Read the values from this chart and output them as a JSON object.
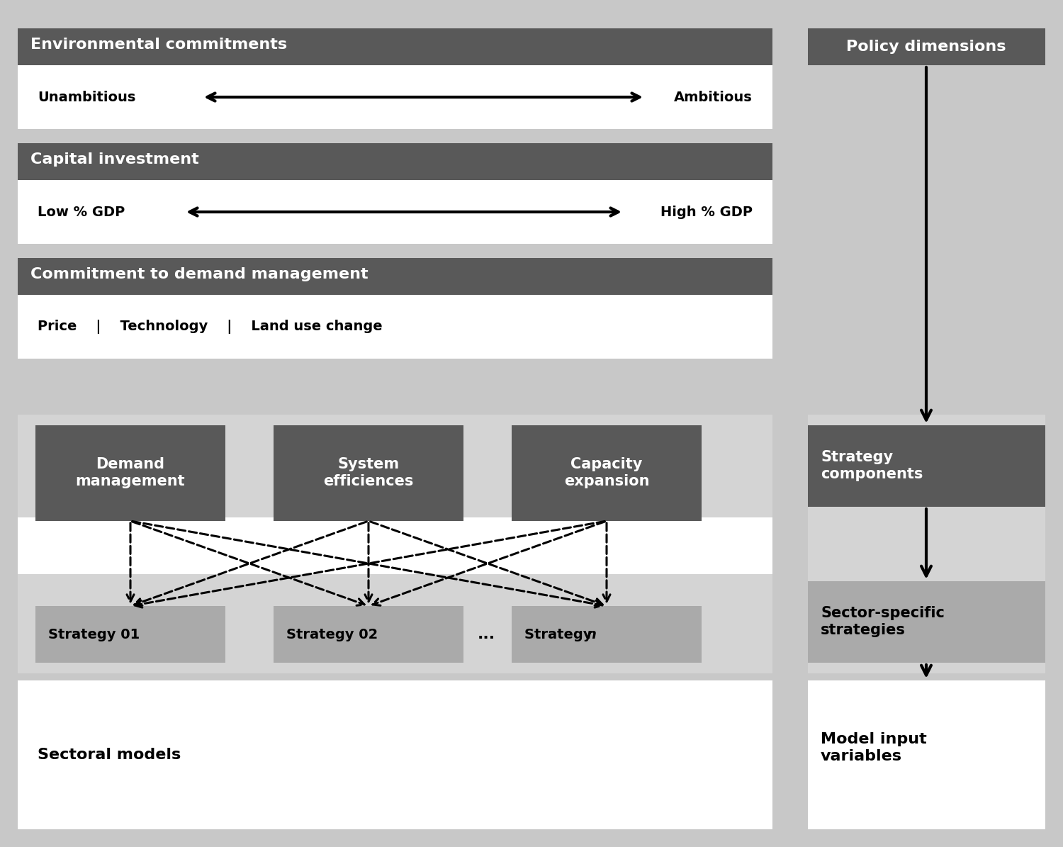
{
  "bg_color": "#c8c8c8",
  "white": "#ffffff",
  "dark_header": "#595959",
  "medium_gray": "#aaaaaa",
  "light_gray": "#d4d4d4",
  "section_bg": "#e0e0e0",
  "black": "#000000",
  "env_header": "Environmental commitments",
  "env_left": "Unambitious",
  "env_right": "Ambitious",
  "cap_header": "Capital investment",
  "cap_left": "Low % GDP",
  "cap_right": "High % GDP",
  "demand_header": "Commitment to demand management",
  "demand_items": "Price    |    Technology    |    Land use change",
  "policy_dim": "Policy dimensions",
  "sc1": "Demand\nmanagement",
  "sc2": "System\nefficiences",
  "sc3": "Capacity\nexpansion",
  "sc_right": "Strategy\ncomponents",
  "st1": "Strategy 01",
  "st2": "Strategy 02",
  "st3": "...",
  "st4": "Strategy ",
  "st4_italic": "n",
  "st_right": "Sector-specific\nstrategies",
  "bottom_left": "Sectoral models",
  "bottom_right": "Model input\nvariables"
}
